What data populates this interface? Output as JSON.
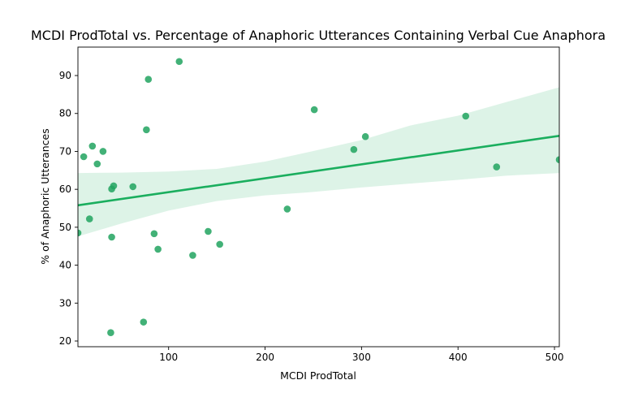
{
  "chart_data": {
    "type": "scatter",
    "title": "MCDI ProdTotal vs. Percentage of Anaphoric Utterances Containing Verbal Cue Anaphora",
    "xlabel": "MCDI ProdTotal",
    "ylabel": "% of Anaphoric Utterances",
    "xlim": [
      6,
      505
    ],
    "ylim": [
      18.5,
      97.5
    ],
    "x_ticks": [
      100,
      200,
      300,
      400,
      500
    ],
    "y_ticks": [
      20,
      30,
      40,
      50,
      60,
      70,
      80,
      90
    ],
    "grid": false,
    "colors": {
      "points": "#21a35f",
      "regression_line": "#1aae5e",
      "confidence_band": "#cfeedd"
    },
    "points": [
      {
        "x": 6,
        "y": 48.5
      },
      {
        "x": 12,
        "y": 68.6
      },
      {
        "x": 18,
        "y": 52.2
      },
      {
        "x": 21,
        "y": 71.4
      },
      {
        "x": 26,
        "y": 66.7
      },
      {
        "x": 32,
        "y": 70.0
      },
      {
        "x": 40,
        "y": 22.2
      },
      {
        "x": 41,
        "y": 47.4
      },
      {
        "x": 41,
        "y": 60.1
      },
      {
        "x": 43,
        "y": 60.9
      },
      {
        "x": 63,
        "y": 60.7
      },
      {
        "x": 74,
        "y": 25.0
      },
      {
        "x": 77,
        "y": 75.7
      },
      {
        "x": 79,
        "y": 89.0
      },
      {
        "x": 85,
        "y": 48.3
      },
      {
        "x": 89,
        "y": 44.2
      },
      {
        "x": 111,
        "y": 93.7
      },
      {
        "x": 125,
        "y": 42.6
      },
      {
        "x": 141,
        "y": 48.9
      },
      {
        "x": 153,
        "y": 45.5
      },
      {
        "x": 223,
        "y": 54.8
      },
      {
        "x": 251,
        "y": 81.0
      },
      {
        "x": 292,
        "y": 70.5
      },
      {
        "x": 304,
        "y": 73.9
      },
      {
        "x": 408,
        "y": 79.3
      },
      {
        "x": 440,
        "y": 65.9
      },
      {
        "x": 505,
        "y": 67.8
      }
    ],
    "regression": {
      "x": [
        6,
        505
      ],
      "y": [
        55.8,
        74.1
      ]
    },
    "confidence_band": {
      "x": [
        6,
        50,
        100,
        150,
        200,
        250,
        300,
        350,
        400,
        450,
        505
      ],
      "lower": [
        47.6,
        50.9,
        54.4,
        56.9,
        58.4,
        59.3,
        60.5,
        61.5,
        62.5,
        63.6,
        64.3
      ],
      "upper": [
        64.3,
        64.4,
        64.7,
        65.4,
        67.3,
        70.1,
        73.0,
        76.8,
        79.4,
        83.0,
        86.9
      ]
    }
  }
}
